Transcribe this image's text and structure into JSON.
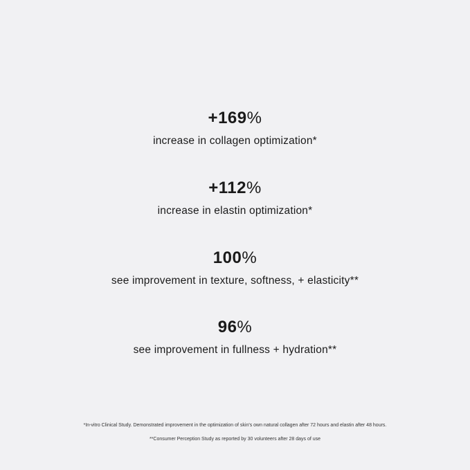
{
  "stats": [
    {
      "value": "+169",
      "unit": "%",
      "description": "increase in collagen optimization*"
    },
    {
      "value": "+112",
      "unit": "%",
      "description": "increase in elastin optimization*"
    },
    {
      "value": "100",
      "unit": "%",
      "description": "see improvement in texture, softness, + elasticity**"
    },
    {
      "value": "96",
      "unit": "%",
      "description": "see improvement in fullness + hydration**"
    }
  ],
  "footnotes": [
    "*In-vitro Clinical Study. Demonstrated improvement in the optimization of skin's own natural collagen after 72 hours and elastin after 48 hours.",
    "**Consumer Perception Study as reported by 30 volunteers after 28 days of use"
  ]
}
